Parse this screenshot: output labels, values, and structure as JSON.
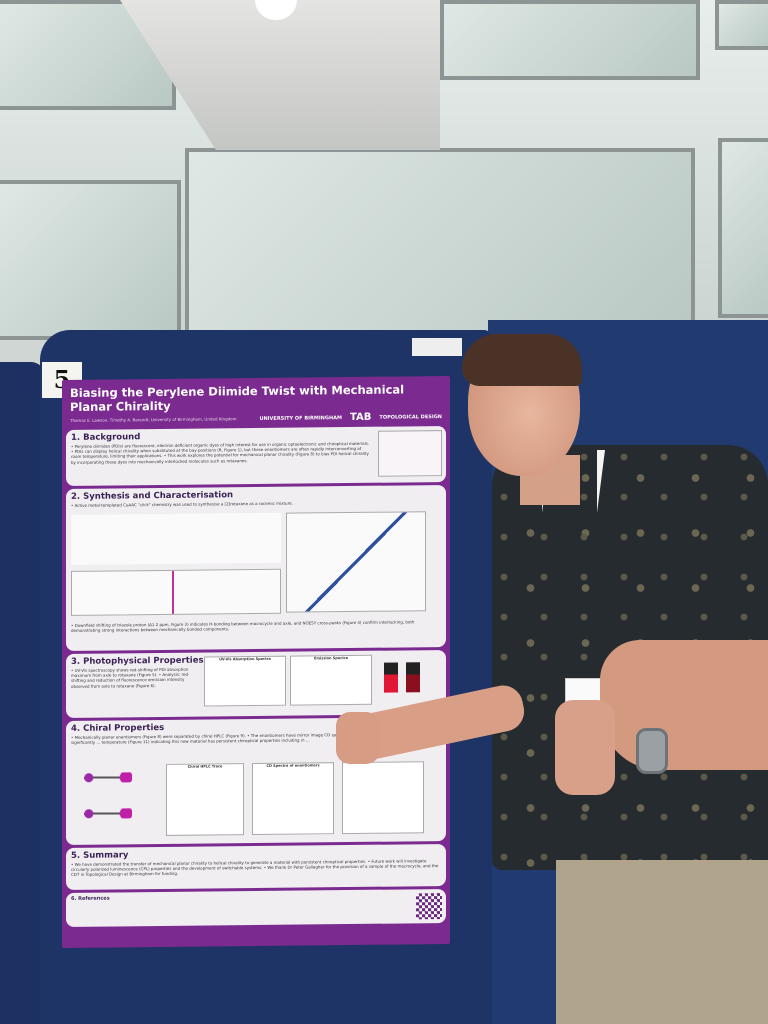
{
  "scene": {
    "board_number": "5",
    "colors": {
      "board": "#1f3466",
      "poster_frame": "#7b2a8f",
      "section_bg": "#f1eef2",
      "shirt": "#262b30",
      "pants": "#b0a48c"
    }
  },
  "poster": {
    "title": "Biasing the Perylene Diimide Twist with Mechanical Planar Chirality",
    "authors": "Thomas E. Lawson, Timothy A. Barendt, University of Birmingham, United Kingdom",
    "logos": [
      "UNIVERSITY OF BIRMINGHAM",
      "TAB",
      "TOPOLOGICAL DESIGN"
    ],
    "sections": [
      {
        "title": "1. Background",
        "text": "• Perylene diimides (PDIs) are fluorescent, electron deficient organic dyes of high interest for use in organic optoelectronic and chiroptical materials. • PDIs can display helical chirality when substituted at the bay-positions (R, Figure 1), but these enantiomers are often rapidly interconverting at room temperature, limiting their applications. • This work explores the potential for mechanical planar chirality (Figure 8) to bias PDI helical chirality by incorporating these dyes into mechanically interlocked molecules such as rotaxanes."
      },
      {
        "title": "2. Synthesis and Characterisation",
        "text": "• Active metal-templated CuAAC \"click\" chemistry was used to synthesise a [2]rotaxane as a racemic mixture.",
        "text2": "• Downfield shifting of triazole proton (Δ1.2 ppm, Figure 3) indicates H-bonding between macrocycle and axle, and NOESY cross-peaks (Figure 4) confirm interlocking, both demonstrating strong interactions between mechanically bonded components."
      },
      {
        "title": "3. Photophysical Properties",
        "text": "• UV-Vis spectroscopy shows red-shifting of PDI absorption maximum from axle to rotaxane (Figure 5). • Analysis: red-shifting and reduction of fluorescence emission intensity observed from axle to rotaxane (Figure 6).",
        "figures": [
          "UV-Vis Absorption Spectra",
          "Emission Spectra"
        ]
      },
      {
        "title": "4. Chiral Properties",
        "text": "• Mechanically planar enantiomers (Figure 8) were separated by chiral HPLC (Figure 9). • The enantiomers have mirror image CD spectra (g_abs = 1.2x10⁻³ at 582 nm), which are not significantly ... temperature (Figure 11) indicating this new material has persistent chiroptical properties including in ...",
        "figures": [
          "Chiral HPLC Trace",
          "CD Spectra of enantiomers"
        ]
      },
      {
        "title": "5. Summary",
        "text": "• We have demonstrated the transfer of mechanical planar chirality to helical chirality to generate a material with persistent chiroptical properties. • Future work will investigate circularly polarized luminescence (CPL) properties and the development of switchable systems. • We thank Dr Peter Gallagher for the provision of a sample of the macrocycle, and the CDT in Topological Design at Birmingham for funding."
      },
      {
        "title": "6. References",
        "text": ""
      }
    ]
  }
}
